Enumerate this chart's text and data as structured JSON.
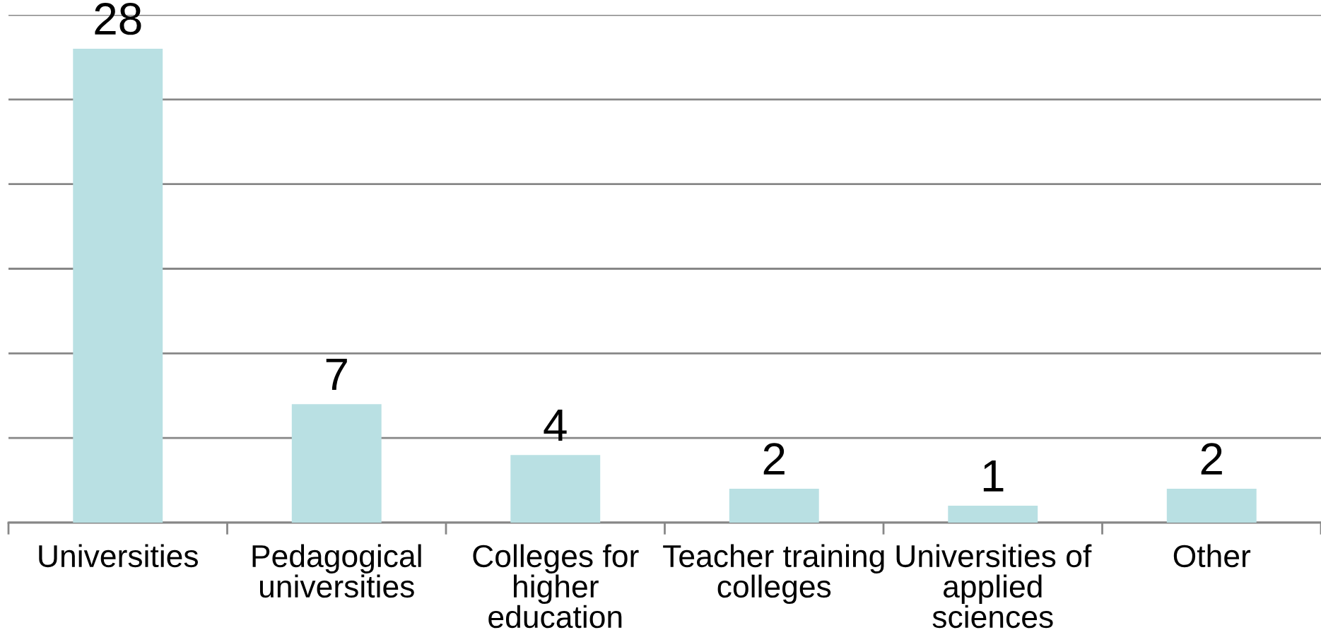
{
  "chart_data": {
    "type": "bar",
    "categories": [
      "Universities",
      "Pedagogical\nuniversities",
      "Colleges for\nhigher\neducation",
      "Teacher training\ncolleges",
      "Universities of\napplied\nsciences",
      "Other"
    ],
    "values": [
      28,
      7,
      4,
      2,
      1,
      2
    ],
    "color": "#b9e0e3",
    "ylim": [
      0,
      30
    ],
    "yticks": [
      {
        "value": 0,
        "label": null
      },
      {
        "value": 5,
        "label": null
      },
      {
        "value": 10,
        "label": null
      },
      {
        "value": 15,
        "label": null
      },
      {
        "value": 20,
        "label": null
      },
      {
        "value": 25,
        "label": null
      },
      {
        "value": 30,
        "label": null
      }
    ],
    "grid": "y",
    "tick_labels": "x",
    "data_labels": true
  }
}
